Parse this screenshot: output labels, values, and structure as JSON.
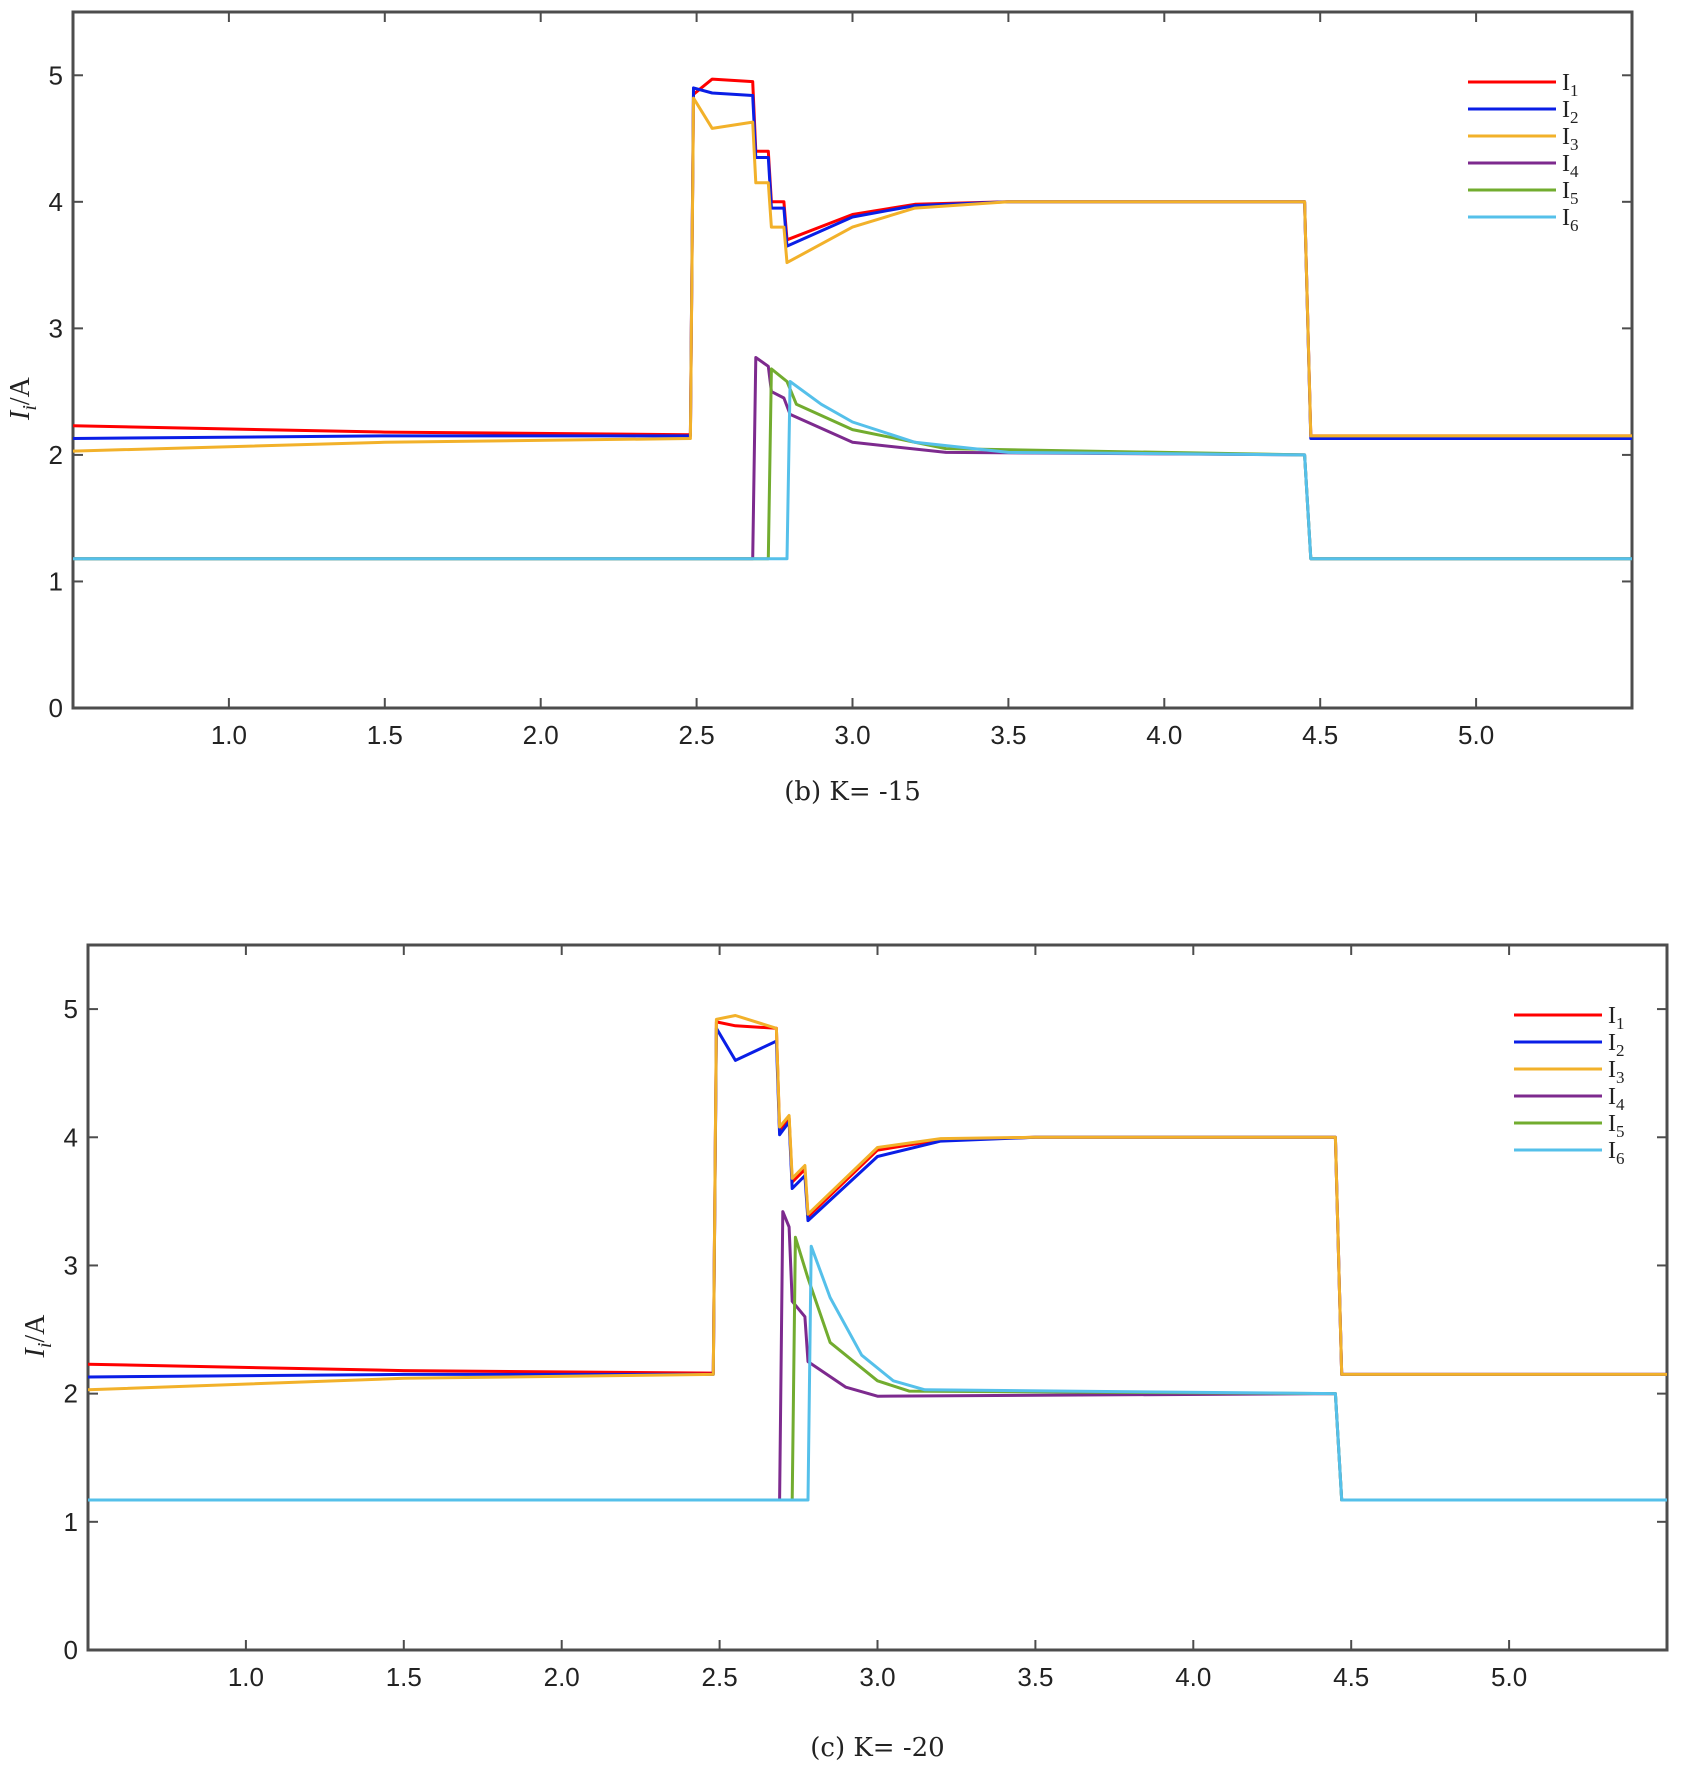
{
  "colors": {
    "I1": "#ff0000",
    "I2": "#0a1ee6",
    "I3": "#f2b12a",
    "I4": "#7d2a8e",
    "I5": "#72ac2f",
    "I6": "#55c0ea"
  },
  "chart_data": [
    {
      "type": "line",
      "caption": "(b)  K= -15",
      "ylabel": "I_i/A",
      "xlim": [
        0.5,
        5.5
      ],
      "ylim": [
        0,
        5.5
      ],
      "xticks": [
        "1.0",
        "1.5",
        "2.0",
        "2.5",
        "3.0",
        "3.5",
        "4.0",
        "4.5",
        "5.0"
      ],
      "yticks": [
        "0",
        "1",
        "2",
        "3",
        "4",
        "5"
      ],
      "legend": [
        "I1",
        "I2",
        "I3",
        "I4",
        "I5",
        "I6"
      ],
      "series": [
        {
          "name": "I1",
          "points": [
            [
              0.5,
              2.23
            ],
            [
              1.5,
              2.18
            ],
            [
              2.48,
              2.16
            ],
            [
              2.49,
              4.85
            ],
            [
              2.55,
              4.97
            ],
            [
              2.68,
              4.95
            ],
            [
              2.69,
              4.4
            ],
            [
              2.73,
              4.4
            ],
            [
              2.74,
              4.0
            ],
            [
              2.78,
              4.0
            ],
            [
              2.79,
              3.7
            ],
            [
              3.0,
              3.9
            ],
            [
              3.2,
              3.98
            ],
            [
              3.5,
              4.0
            ],
            [
              4.45,
              4.0
            ],
            [
              4.47,
              2.15
            ],
            [
              5.5,
              2.15
            ]
          ]
        },
        {
          "name": "I2",
          "points": [
            [
              0.5,
              2.13
            ],
            [
              1.5,
              2.15
            ],
            [
              2.48,
              2.15
            ],
            [
              2.49,
              4.9
            ],
            [
              2.55,
              4.86
            ],
            [
              2.68,
              4.84
            ],
            [
              2.69,
              4.35
            ],
            [
              2.73,
              4.35
            ],
            [
              2.74,
              3.95
            ],
            [
              2.78,
              3.95
            ],
            [
              2.79,
              3.65
            ],
            [
              3.0,
              3.88
            ],
            [
              3.2,
              3.97
            ],
            [
              3.5,
              4.0
            ],
            [
              4.45,
              4.0
            ],
            [
              4.47,
              2.13
            ],
            [
              5.5,
              2.13
            ]
          ]
        },
        {
          "name": "I3",
          "points": [
            [
              0.5,
              2.03
            ],
            [
              1.5,
              2.1
            ],
            [
              2.48,
              2.13
            ],
            [
              2.49,
              4.82
            ],
            [
              2.55,
              4.58
            ],
            [
              2.68,
              4.63
            ],
            [
              2.69,
              4.15
            ],
            [
              2.73,
              4.15
            ],
            [
              2.74,
              3.8
            ],
            [
              2.78,
              3.8
            ],
            [
              2.79,
              3.52
            ],
            [
              3.0,
              3.8
            ],
            [
              3.2,
              3.95
            ],
            [
              3.5,
              4.0
            ],
            [
              4.45,
              4.0
            ],
            [
              4.47,
              2.15
            ],
            [
              5.5,
              2.15
            ]
          ]
        },
        {
          "name": "I4",
          "points": [
            [
              0.5,
              1.18
            ],
            [
              2.68,
              1.18
            ],
            [
              2.69,
              2.77
            ],
            [
              2.73,
              2.7
            ],
            [
              2.74,
              2.5
            ],
            [
              2.78,
              2.45
            ],
            [
              2.8,
              2.32
            ],
            [
              3.0,
              2.1
            ],
            [
              3.3,
              2.02
            ],
            [
              4.45,
              2.0
            ],
            [
              4.47,
              1.18
            ],
            [
              5.5,
              1.18
            ]
          ]
        },
        {
          "name": "I5",
          "points": [
            [
              0.5,
              1.18
            ],
            [
              2.73,
              1.18
            ],
            [
              2.74,
              2.68
            ],
            [
              2.79,
              2.58
            ],
            [
              2.82,
              2.4
            ],
            [
              3.0,
              2.2
            ],
            [
              3.3,
              2.05
            ],
            [
              4.45,
              2.0
            ],
            [
              4.47,
              1.18
            ],
            [
              5.5,
              1.18
            ]
          ]
        },
        {
          "name": "I6",
          "points": [
            [
              0.5,
              1.18
            ],
            [
              2.79,
              1.18
            ],
            [
              2.8,
              2.58
            ],
            [
              2.9,
              2.4
            ],
            [
              3.0,
              2.26
            ],
            [
              3.2,
              2.1
            ],
            [
              3.5,
              2.02
            ],
            [
              4.45,
              2.0
            ],
            [
              4.47,
              1.18
            ],
            [
              5.5,
              1.18
            ]
          ]
        }
      ]
    },
    {
      "type": "line",
      "caption": "(c)  K= -20",
      "ylabel": "I_i/A",
      "xlim": [
        0.5,
        5.5
      ],
      "ylim": [
        0,
        5.5
      ],
      "xticks": [
        "1.0",
        "1.5",
        "2.0",
        "2.5",
        "3.0",
        "3.5",
        "4.0",
        "4.5",
        "5.0"
      ],
      "yticks": [
        "0",
        "1",
        "2",
        "3",
        "4",
        "5"
      ],
      "legend": [
        "I1",
        "I2",
        "I3",
        "I4",
        "I5",
        "I6"
      ],
      "series": [
        {
          "name": "I1",
          "points": [
            [
              0.5,
              2.23
            ],
            [
              1.5,
              2.18
            ],
            [
              2.48,
              2.16
            ],
            [
              2.49,
              4.9
            ],
            [
              2.55,
              4.87
            ],
            [
              2.68,
              4.85
            ],
            [
              2.69,
              4.05
            ],
            [
              2.72,
              4.15
            ],
            [
              2.73,
              3.65
            ],
            [
              2.77,
              3.75
            ],
            [
              2.78,
              3.38
            ],
            [
              3.0,
              3.9
            ],
            [
              3.2,
              3.98
            ],
            [
              3.5,
              4.0
            ],
            [
              4.45,
              4.0
            ],
            [
              4.47,
              2.15
            ],
            [
              5.5,
              2.15
            ]
          ]
        },
        {
          "name": "I2",
          "points": [
            [
              0.5,
              2.13
            ],
            [
              1.5,
              2.15
            ],
            [
              2.48,
              2.15
            ],
            [
              2.49,
              4.85
            ],
            [
              2.55,
              4.6
            ],
            [
              2.68,
              4.75
            ],
            [
              2.69,
              4.02
            ],
            [
              2.72,
              4.12
            ],
            [
              2.73,
              3.6
            ],
            [
              2.77,
              3.7
            ],
            [
              2.78,
              3.35
            ],
            [
              3.0,
              3.85
            ],
            [
              3.2,
              3.97
            ],
            [
              3.5,
              4.0
            ],
            [
              4.45,
              4.0
            ],
            [
              4.47,
              2.15
            ],
            [
              5.5,
              2.15
            ]
          ]
        },
        {
          "name": "I3",
          "points": [
            [
              0.5,
              2.03
            ],
            [
              1.5,
              2.12
            ],
            [
              2.48,
              2.15
            ],
            [
              2.49,
              4.92
            ],
            [
              2.55,
              4.95
            ],
            [
              2.68,
              4.85
            ],
            [
              2.69,
              4.08
            ],
            [
              2.72,
              4.17
            ],
            [
              2.73,
              3.68
            ],
            [
              2.77,
              3.78
            ],
            [
              2.78,
              3.4
            ],
            [
              3.0,
              3.92
            ],
            [
              3.2,
              3.99
            ],
            [
              3.5,
              4.0
            ],
            [
              4.45,
              4.0
            ],
            [
              4.47,
              2.15
            ],
            [
              5.5,
              2.15
            ]
          ]
        },
        {
          "name": "I4",
          "points": [
            [
              0.5,
              1.17
            ],
            [
              2.69,
              1.17
            ],
            [
              2.7,
              3.42
            ],
            [
              2.72,
              3.3
            ],
            [
              2.73,
              2.72
            ],
            [
              2.77,
              2.6
            ],
            [
              2.78,
              2.25
            ],
            [
              2.9,
              2.05
            ],
            [
              3.0,
              1.98
            ],
            [
              4.45,
              2.0
            ],
            [
              4.47,
              1.17
            ],
            [
              5.5,
              1.17
            ]
          ]
        },
        {
          "name": "I5",
          "points": [
            [
              0.5,
              1.17
            ],
            [
              2.73,
              1.17
            ],
            [
              2.74,
              3.22
            ],
            [
              2.78,
              2.9
            ],
            [
              2.85,
              2.4
            ],
            [
              3.0,
              2.1
            ],
            [
              3.1,
              2.02
            ],
            [
              4.45,
              2.0
            ],
            [
              4.47,
              1.17
            ],
            [
              5.5,
              1.17
            ]
          ]
        },
        {
          "name": "I6",
          "points": [
            [
              0.5,
              1.17
            ],
            [
              2.78,
              1.17
            ],
            [
              2.79,
              3.15
            ],
            [
              2.85,
              2.75
            ],
            [
              2.95,
              2.3
            ],
            [
              3.05,
              2.1
            ],
            [
              3.15,
              2.03
            ],
            [
              4.45,
              2.0
            ],
            [
              4.47,
              1.17
            ],
            [
              5.5,
              1.17
            ]
          ]
        }
      ]
    }
  ]
}
